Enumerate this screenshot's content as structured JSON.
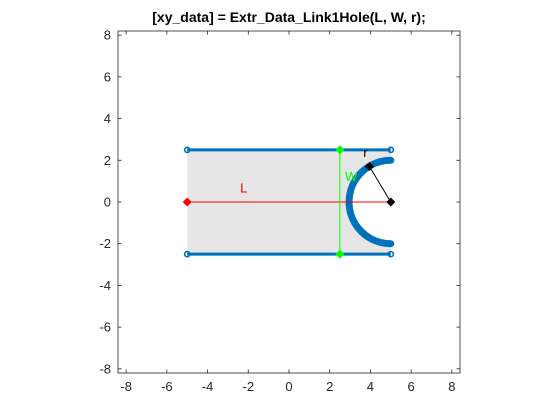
{
  "title": "[xy_data] = Extr_Data_Link1Hole(L, W, r);",
  "chart_data": {
    "type": "diagram",
    "xlim": [
      -8.4,
      8.4
    ],
    "ylim": [
      -8.2,
      8.2
    ],
    "xticks": [
      -8,
      -6,
      -4,
      -2,
      0,
      2,
      4,
      6,
      8
    ],
    "yticks": [
      -8,
      -6,
      -4,
      -2,
      0,
      2,
      4,
      6,
      8
    ],
    "xtick_labels": [
      "-8",
      "-6",
      "-4",
      "-2",
      "0",
      "2",
      "4",
      "6",
      "8"
    ],
    "ytick_labels": [
      "-8",
      "-6",
      "-4",
      "-2",
      "0",
      "2",
      "4",
      "6",
      "8"
    ],
    "grid": false,
    "shape": {
      "fill_color": "#e6e6e6",
      "outline_color": "#0072bd",
      "left_x": -5,
      "right_x": 5,
      "top_y": 2.5,
      "bottom_y": -2.5,
      "hole_center": [
        5,
        0
      ],
      "hole_radius": 2,
      "hole_start_y": 2,
      "hole_end_y": -2
    },
    "annotations": {
      "L": {
        "label": "L",
        "color": "#ff0000",
        "from": [
          -5,
          0
        ],
        "to": [
          5,
          0
        ],
        "label_at": [
          -2.4,
          0.45
        ]
      },
      "W": {
        "label": "W",
        "color": "#00ff00",
        "from": [
          2.5,
          2.5
        ],
        "to": [
          2.5,
          -2.5
        ],
        "label_at": [
          2.75,
          1.0
        ]
      },
      "r": {
        "label": "r",
        "color": "#000000",
        "from": [
          5,
          0
        ],
        "to": [
          3.95,
          1.7
        ],
        "label_at": [
          3.65,
          2.15
        ]
      }
    }
  }
}
